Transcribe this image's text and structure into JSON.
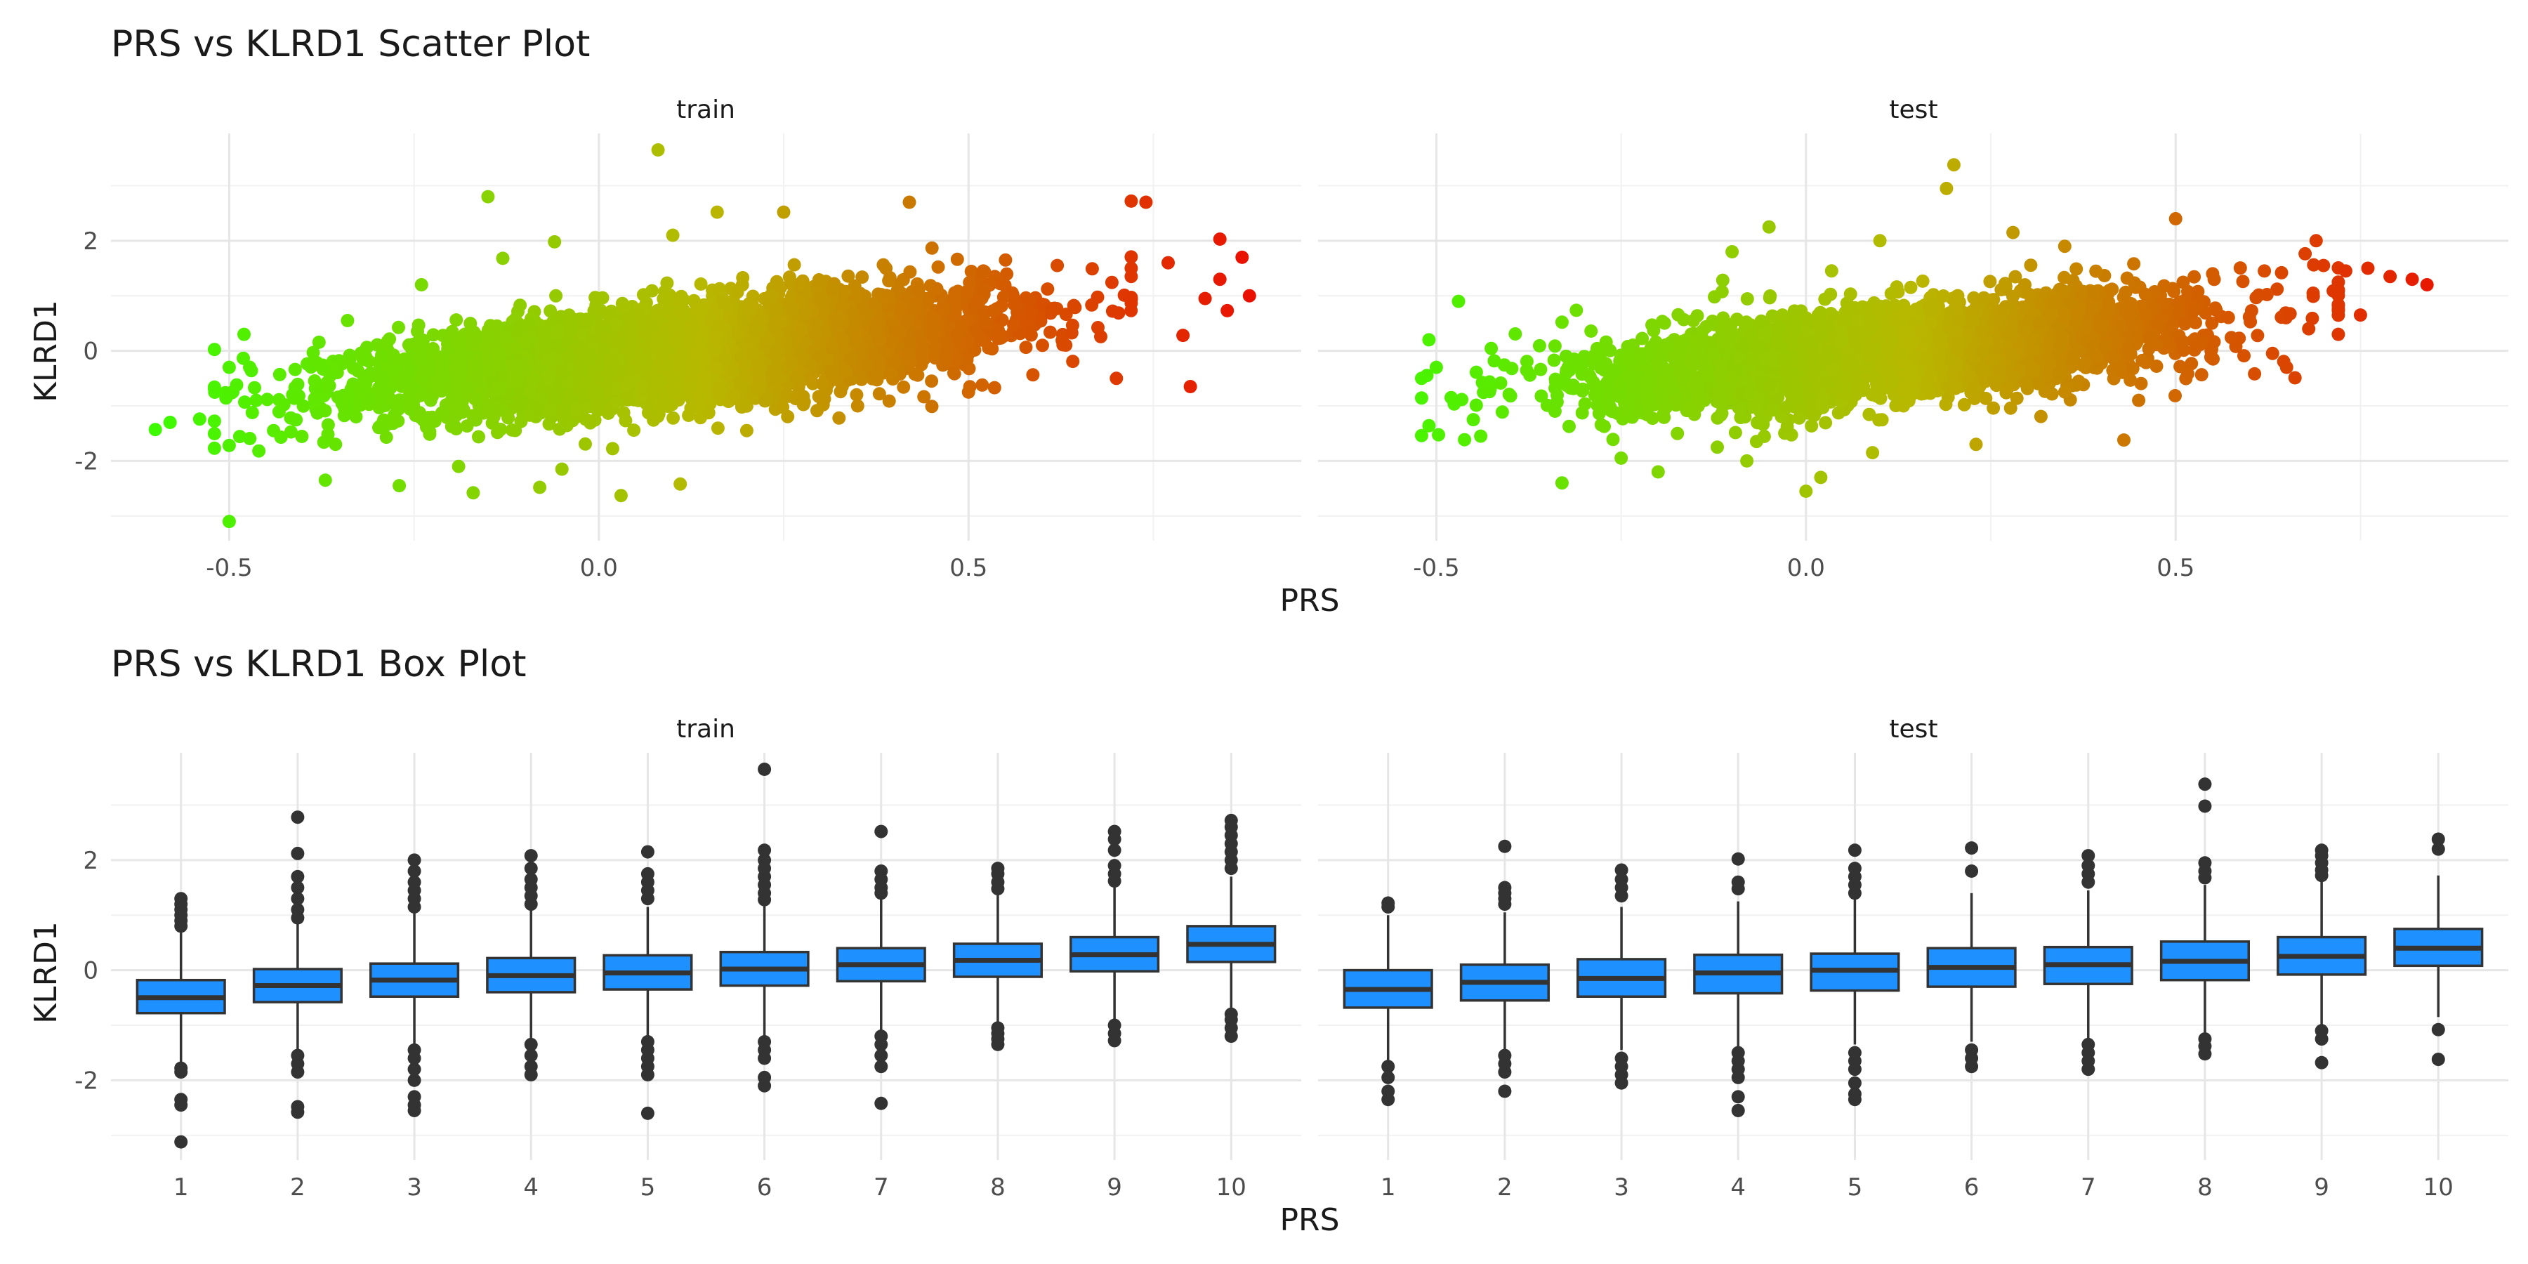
{
  "chart_data": [
    {
      "type": "scatter",
      "title": "PRS vs KLRD1 Scatter Plot",
      "xlabel": "PRS",
      "ylabel": "KLRD1",
      "xlim": [
        -0.66,
        0.95
      ],
      "ylim": [
        -3.45,
        3.95
      ],
      "xticks": [
        -0.5,
        0.0,
        0.5
      ],
      "xtick_labels": [
        "-0.5",
        "0.0",
        "0.5"
      ],
      "yticks": [
        -2,
        0,
        2
      ],
      "ytick_labels": [
        "-2",
        "0",
        "2"
      ],
      "grid": true,
      "color_scale": {
        "low": "#33ff00",
        "mid": "#b8b800",
        "high": "#ee0000"
      },
      "panels": [
        {
          "name": "train",
          "outliers": [
            [
              -0.6,
              -1.43
            ],
            [
              -0.58,
              -1.3
            ],
            [
              -0.54,
              -1.24
            ],
            [
              -0.52,
              -0.66
            ],
            [
              -0.5,
              -1.72
            ],
            [
              -0.49,
              -0.62
            ],
            [
              -0.5,
              -0.3
            ],
            [
              -0.48,
              0.3
            ],
            [
              -0.47,
              -0.36
            ],
            [
              -0.46,
              -1.82
            ],
            [
              -0.44,
              -1.45
            ],
            [
              -0.43,
              -1.57
            ],
            [
              -0.5,
              -3.1
            ],
            [
              -0.37,
              -2.35
            ],
            [
              -0.27,
              -2.45
            ],
            [
              -0.17,
              -2.58
            ],
            [
              -0.08,
              -2.48
            ],
            [
              -0.05,
              -2.15
            ],
            [
              0.03,
              -2.63
            ],
            [
              0.11,
              -2.42
            ],
            [
              -0.34,
              0.55
            ],
            [
              -0.24,
              1.2
            ],
            [
              -0.13,
              1.68
            ],
            [
              -0.15,
              2.8
            ],
            [
              -0.06,
              1.98
            ],
            [
              0.1,
              2.1
            ],
            [
              0.16,
              2.52
            ],
            [
              0.25,
              2.52
            ],
            [
              0.42,
              2.7
            ],
            [
              0.08,
              3.65
            ],
            [
              0.52,
              1.45
            ],
            [
              0.55,
              1.65
            ],
            [
              0.62,
              1.55
            ],
            [
              0.72,
              2.72
            ],
            [
              0.74,
              2.7
            ],
            [
              0.7,
              -0.5
            ],
            [
              0.8,
              -0.65
            ],
            [
              0.72,
              1.5
            ],
            [
              0.77,
              1.6
            ],
            [
              0.84,
              2.03
            ],
            [
              0.87,
              1.7
            ],
            [
              0.84,
              1.3
            ],
            [
              0.88,
              1.0
            ],
            [
              0.85,
              0.73
            ],
            [
              0.82,
              0.95
            ],
            [
              0.79,
              0.28
            ],
            [
              0.45,
              -0.55
            ],
            [
              0.5,
              -0.75
            ],
            [
              0.35,
              -1.0
            ],
            [
              0.2,
              -1.45
            ],
            [
              0.6,
              0.1
            ]
          ]
        },
        {
          "name": "test",
          "outliers": [
            [
              -0.51,
              -1.36
            ],
            [
              -0.52,
              -0.5
            ],
            [
              -0.51,
              0.2
            ],
            [
              -0.5,
              -0.3
            ],
            [
              -0.48,
              -0.85
            ],
            [
              -0.45,
              -1.25
            ],
            [
              -0.44,
              -1.55
            ],
            [
              -0.33,
              -2.4
            ],
            [
              -0.25,
              -1.95
            ],
            [
              -0.2,
              -2.2
            ],
            [
              -0.12,
              -1.75
            ],
            [
              -0.08,
              -2.0
            ],
            [
              0.0,
              -2.55
            ],
            [
              0.02,
              -2.3
            ],
            [
              0.09,
              -1.85
            ],
            [
              0.23,
              -1.7
            ],
            [
              0.43,
              -1.62
            ],
            [
              0.45,
              -0.9
            ],
            [
              -0.47,
              0.9
            ],
            [
              -0.33,
              0.52
            ],
            [
              -0.1,
              1.8
            ],
            [
              -0.05,
              2.25
            ],
            [
              0.1,
              2.0
            ],
            [
              0.19,
              2.95
            ],
            [
              0.2,
              3.38
            ],
            [
              0.28,
              2.15
            ],
            [
              0.35,
              1.9
            ],
            [
              0.5,
              2.4
            ],
            [
              0.55,
              1.4
            ],
            [
              0.62,
              1.45
            ],
            [
              0.69,
              2.0
            ],
            [
              0.7,
              1.55
            ],
            [
              0.73,
              1.45
            ],
            [
              0.76,
              1.5
            ],
            [
              0.79,
              1.35
            ],
            [
              0.82,
              1.3
            ],
            [
              0.84,
              1.2
            ],
            [
              0.75,
              0.65
            ],
            [
              0.68,
              0.4
            ],
            [
              0.72,
              0.3
            ],
            [
              0.65,
              -0.3
            ]
          ]
        }
      ]
    },
    {
      "type": "box",
      "title": "PRS vs KLRD1 Box Plot",
      "xlabel": "PRS",
      "ylabel": "KLRD1",
      "categories": [
        "1",
        "2",
        "3",
        "4",
        "5",
        "6",
        "7",
        "8",
        "9",
        "10"
      ],
      "ylim": [
        -3.45,
        3.95
      ],
      "yticks": [
        -2,
        0,
        2
      ],
      "ytick_labels": [
        "-2",
        "0",
        "2"
      ],
      "grid": true,
      "box_color": "#1e90ff",
      "panels": [
        {
          "name": "train",
          "boxes": [
            {
              "q1": -0.78,
              "median": -0.5,
              "q3": -0.18,
              "whisker_low": -1.7,
              "whisker_high": 0.72,
              "outliers": [
                1.3,
                1.2,
                1.1,
                1.0,
                0.9,
                0.8,
                -1.78,
                -1.85,
                -2.35,
                -2.45,
                -3.12
              ]
            },
            {
              "q1": -0.58,
              "median": -0.28,
              "q3": 0.02,
              "whisker_low": -1.45,
              "whisker_high": 0.88,
              "outliers": [
                2.78,
                2.12,
                1.7,
                1.5,
                1.3,
                1.1,
                0.95,
                -1.55,
                -1.7,
                -1.85,
                -2.48,
                -2.58
              ]
            },
            {
              "q1": -0.48,
              "median": -0.18,
              "q3": 0.12,
              "whisker_low": -1.35,
              "whisker_high": 1.05,
              "outliers": [
                2.0,
                1.8,
                1.6,
                1.45,
                1.3,
                1.15,
                -1.45,
                -1.6,
                -1.8,
                -2.0,
                -2.3,
                -2.45,
                -2.55
              ]
            },
            {
              "q1": -0.4,
              "median": -0.1,
              "q3": 0.22,
              "whisker_low": -1.3,
              "whisker_high": 1.1,
              "outliers": [
                2.08,
                1.85,
                1.65,
                1.5,
                1.35,
                1.2,
                -1.35,
                -1.55,
                -1.75,
                -1.9
              ]
            },
            {
              "q1": -0.35,
              "median": -0.05,
              "q3": 0.27,
              "whisker_low": -1.25,
              "whisker_high": 1.15,
              "outliers": [
                2.15,
                1.75,
                1.6,
                1.45,
                1.3,
                -1.3,
                -1.45,
                -1.6,
                -1.75,
                -1.9,
                -2.6
              ]
            },
            {
              "q1": -0.28,
              "median": 0.02,
              "q3": 0.33,
              "whisker_low": -1.2,
              "whisker_high": 1.2,
              "outliers": [
                3.65,
                2.18,
                2.0,
                1.85,
                1.7,
                1.55,
                1.4,
                1.28,
                -1.3,
                -1.45,
                -1.6,
                -1.95,
                -2.1
              ]
            },
            {
              "q1": -0.2,
              "median": 0.1,
              "q3": 0.4,
              "whisker_low": -1.1,
              "whisker_high": 1.3,
              "outliers": [
                2.52,
                1.8,
                1.65,
                1.5,
                1.4,
                -1.2,
                -1.35,
                -1.55,
                -1.75,
                -2.42
              ]
            },
            {
              "q1": -0.12,
              "median": 0.18,
              "q3": 0.48,
              "whisker_low": -1.0,
              "whisker_high": 1.4,
              "outliers": [
                1.85,
                1.75,
                1.6,
                1.48,
                -1.05,
                -1.15,
                -1.25,
                -1.35
              ]
            },
            {
              "q1": -0.02,
              "median": 0.28,
              "q3": 0.6,
              "whisker_low": -0.95,
              "whisker_high": 1.5,
              "outliers": [
                2.52,
                2.38,
                2.18,
                1.9,
                1.75,
                1.62,
                -1.0,
                -1.15,
                -1.28
              ]
            },
            {
              "q1": 0.15,
              "median": 0.47,
              "q3": 0.8,
              "whisker_low": -0.75,
              "whisker_high": 1.7,
              "outliers": [
                2.72,
                2.6,
                2.45,
                2.3,
                2.15,
                2.0,
                1.85,
                -0.8,
                -0.9,
                -1.05,
                -1.2
              ]
            }
          ]
        },
        {
          "name": "test",
          "boxes": [
            {
              "q1": -0.68,
              "median": -0.35,
              "q3": 0.0,
              "whisker_low": -1.65,
              "whisker_high": 1.0,
              "outliers": [
                1.22,
                1.15,
                -1.75,
                -1.95,
                -2.2,
                -2.35
              ]
            },
            {
              "q1": -0.55,
              "median": -0.22,
              "q3": 0.1,
              "whisker_low": -1.5,
              "whisker_high": 1.05,
              "outliers": [
                2.25,
                1.5,
                1.4,
                1.3,
                1.2,
                -1.55,
                -1.7,
                -1.85,
                -2.2
              ]
            },
            {
              "q1": -0.48,
              "median": -0.15,
              "q3": 0.2,
              "whisker_low": -1.45,
              "whisker_high": 1.15,
              "outliers": [
                1.82,
                1.65,
                1.5,
                1.35,
                -1.6,
                -1.75,
                -1.9,
                -2.05
              ]
            },
            {
              "q1": -0.42,
              "median": -0.05,
              "q3": 0.28,
              "whisker_low": -1.4,
              "whisker_high": 1.25,
              "outliers": [
                2.02,
                1.6,
                1.48,
                -1.5,
                -1.65,
                -1.8,
                -1.95,
                -2.3,
                -2.55
              ]
            },
            {
              "q1": -0.37,
              "median": 0.0,
              "q3": 0.3,
              "whisker_low": -1.35,
              "whisker_high": 1.3,
              "outliers": [
                2.18,
                1.85,
                1.7,
                1.55,
                1.4,
                -1.5,
                -1.65,
                -1.8,
                -2.05,
                -2.25,
                -2.35
              ]
            },
            {
              "q1": -0.3,
              "median": 0.05,
              "q3": 0.4,
              "whisker_low": -1.3,
              "whisker_high": 1.4,
              "outliers": [
                2.22,
                1.8,
                -1.45,
                -1.6,
                -1.75
              ]
            },
            {
              "q1": -0.25,
              "median": 0.1,
              "q3": 0.42,
              "whisker_low": -1.25,
              "whisker_high": 1.45,
              "outliers": [
                2.08,
                1.9,
                1.75,
                1.6,
                -1.35,
                -1.5,
                -1.65,
                -1.8
              ]
            },
            {
              "q1": -0.18,
              "median": 0.16,
              "q3": 0.52,
              "whisker_low": -1.15,
              "whisker_high": 1.55,
              "outliers": [
                3.38,
                2.98,
                1.95,
                1.8,
                1.68,
                -1.25,
                -1.38,
                -1.52
              ]
            },
            {
              "q1": -0.08,
              "median": 0.25,
              "q3": 0.6,
              "whisker_low": -1.05,
              "whisker_high": 1.62,
              "outliers": [
                2.18,
                2.08,
                1.95,
                1.82,
                1.72,
                -1.1,
                -1.25,
                -1.68
              ]
            },
            {
              "q1": 0.08,
              "median": 0.4,
              "q3": 0.75,
              "whisker_low": -0.85,
              "whisker_high": 1.72,
              "outliers": [
                2.38,
                2.2,
                -1.08,
                -1.62
              ]
            }
          ]
        }
      ]
    }
  ]
}
